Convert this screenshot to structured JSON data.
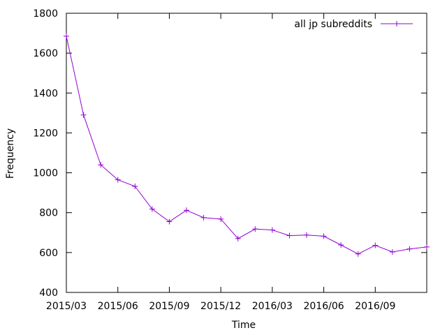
{
  "chart_data": {
    "type": "line",
    "title": "",
    "xlabel": "Time",
    "ylabel": "Frequency",
    "ylim": [
      400,
      1800
    ],
    "y_ticks": [
      "400",
      "600",
      "800",
      "1000",
      "1200",
      "1400",
      "1600",
      "1800"
    ],
    "x_range": [
      "2015/03",
      "2016/12"
    ],
    "x_ticks": [
      "2015/03",
      "2015/06",
      "2015/09",
      "2015/12",
      "2016/03",
      "2016/06",
      "2016/09"
    ],
    "grid": false,
    "legend_position": "top-right",
    "series": [
      {
        "name": "all jp subreddits",
        "color": "#9400d3",
        "marker": "plus",
        "x": [
          "2015/03",
          "2015/04",
          "2015/05",
          "2015/06",
          "2015/07",
          "2015/08",
          "2015/09",
          "2015/10",
          "2015/11",
          "2015/12",
          "2016/01",
          "2016/02",
          "2016/03",
          "2016/04",
          "2016/05",
          "2016/06",
          "2016/07",
          "2016/08",
          "2016/09",
          "2016/10",
          "2016/11",
          "2016/12"
        ],
        "values": [
          1685,
          1290,
          1040,
          965,
          932,
          818,
          755,
          812,
          775,
          768,
          670,
          718,
          713,
          685,
          688,
          682,
          638,
          593,
          636,
          603,
          618,
          628
        ]
      }
    ]
  }
}
